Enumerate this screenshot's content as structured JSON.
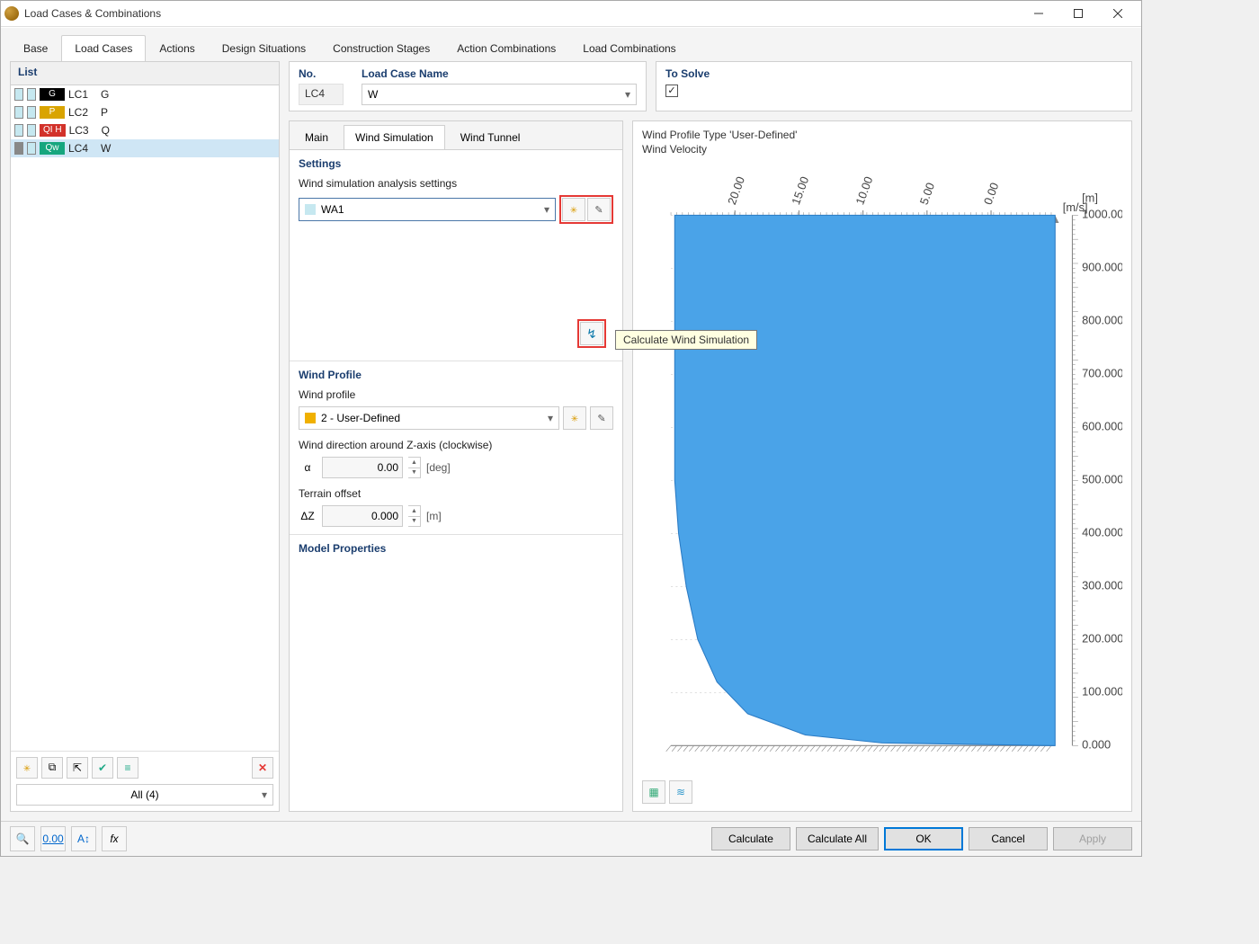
{
  "window": {
    "title": "Load Cases & Combinations"
  },
  "top_tabs": {
    "items": [
      "Base",
      "Load Cases",
      "Actions",
      "Design Situations",
      "Construction Stages",
      "Action Combinations",
      "Load Combinations"
    ],
    "active_index": 1
  },
  "list": {
    "header": "List",
    "footer_combo": "All (4)",
    "items": [
      {
        "swatch1": "#c6e8f0",
        "swatch2": "#c6e8f0",
        "badge_bg": "#000000",
        "badge_text": "G",
        "id": "LC1",
        "name": "G",
        "selected": false
      },
      {
        "swatch1": "#c6e8f0",
        "swatch2": "#c6e8f0",
        "badge_bg": "#d9a400",
        "badge_text": "P",
        "id": "LC2",
        "name": "P",
        "selected": false
      },
      {
        "swatch1": "#c6e8f0",
        "swatch2": "#c6e8f0",
        "badge_bg": "#d2322a",
        "badge_text": "QI H",
        "id": "LC3",
        "name": "Q",
        "selected": false
      },
      {
        "swatch1": "#888888",
        "swatch2": "#c6e8f0",
        "badge_bg": "#16a67e",
        "badge_text": "Qw",
        "id": "LC4",
        "name": "W",
        "selected": true
      }
    ]
  },
  "header_fields": {
    "no_label": "No.",
    "no_value": "LC4",
    "name_label": "Load Case Name",
    "name_value": "W",
    "solve_label": "To Solve",
    "solve_checked": true
  },
  "sub_tabs": {
    "items": [
      "Main",
      "Wind Simulation",
      "Wind Tunnel"
    ],
    "active_index": 1
  },
  "settings": {
    "title": "Settings",
    "label": "Wind simulation analysis settings",
    "combo_value": "WA1",
    "combo_swatch": "#c6e8f0",
    "calc_tooltip": "Calculate Wind Simulation"
  },
  "wind_profile": {
    "title": "Wind Profile",
    "profile_label": "Wind profile",
    "profile_value": "2 - User-Defined",
    "profile_swatch": "#f0b000",
    "direction_label": "Wind direction around Z-axis (clockwise)",
    "alpha_sym": "α",
    "alpha_value": "0.00",
    "alpha_unit": "[deg]",
    "offset_label": "Terrain offset",
    "dz_sym": "ΔZ",
    "dz_value": "0.000",
    "dz_unit": "[m]"
  },
  "model_props": {
    "title": "Model Properties"
  },
  "chart": {
    "title_line1": "Wind Profile Type 'User-Defined'",
    "title_line2": "Wind Velocity",
    "x_unit": "[m/s]",
    "y_unit": "[m]",
    "x_ticks": [
      "20.00",
      "15.00",
      "10.00",
      "5.00",
      "0.00"
    ],
    "y_ticks": [
      "1000.000",
      "900.000",
      "800.000",
      "700.000",
      "600.000",
      "500.000",
      "400.000",
      "300.000",
      "200.000",
      "100.000",
      "0.000"
    ],
    "fill_color": "#4aa3e8",
    "axis_color": "#888888",
    "grid_color": "#cccccc",
    "background": "#ffffff",
    "profile_points_normalized": {
      "comment": "x,y pairs 0..1 from left/bottom of plot; defines left boundary of filled profile (x=velocity normalized left→right=high→0, y=height 0→1000)",
      "points": [
        [
          0.01,
          1.0
        ],
        [
          0.01,
          0.5
        ],
        [
          0.02,
          0.4
        ],
        [
          0.04,
          0.3
        ],
        [
          0.07,
          0.2
        ],
        [
          0.12,
          0.12
        ],
        [
          0.2,
          0.06
        ],
        [
          0.35,
          0.02
        ],
        [
          0.55,
          0.005
        ],
        [
          0.99,
          0.0
        ]
      ]
    }
  },
  "buttons": {
    "calculate": "Calculate",
    "calculate_all": "Calculate All",
    "ok": "OK",
    "cancel": "Cancel",
    "apply": "Apply"
  }
}
